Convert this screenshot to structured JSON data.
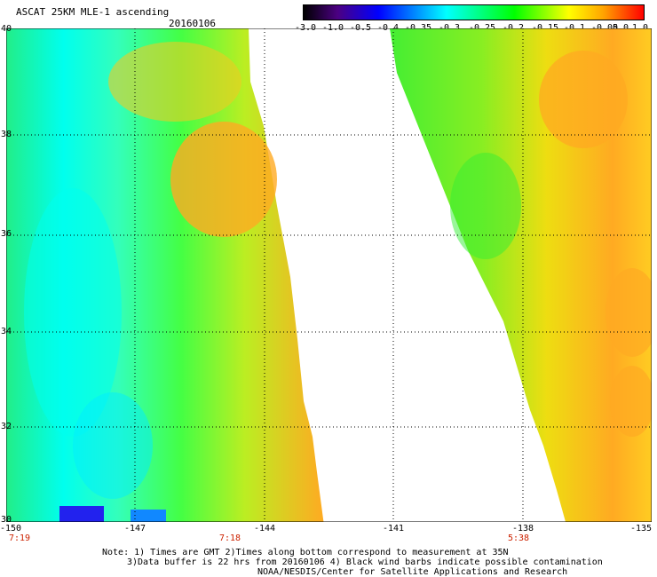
{
  "header": {
    "title": "ASCAT 25KM MLE-1 ascending",
    "date": "20160106"
  },
  "colorbar": {
    "ticks": [
      "-3.0",
      "-1.0",
      "-0.5",
      "-0.4",
      "-0.35",
      "-0.3",
      "-0.25",
      "-0.2",
      "-0.15",
      "-0.1",
      "-0.05",
      "0.0",
      "1.0"
    ]
  },
  "axes": {
    "y_labels": [
      "40",
      "38",
      "36",
      "34",
      "32",
      "30"
    ],
    "x_labels": [
      "-150",
      "-147",
      "-144",
      "-141",
      "-138",
      "-135"
    ],
    "time_labels": [
      "7:19",
      "7:18",
      "5:38"
    ]
  },
  "notes": {
    "line1": "Note: 1) Times are GMT 2)Times along bottom correspond to measurement at 35N",
    "line2": "3)Data buffer is 22 hrs from 20160106 4) Black wind barbs indicate possible contamination",
    "line3": "NOAA/NESDIS/Center for Satellite Applications and Research"
  },
  "map": {
    "lat_range": [
      30,
      40
    ],
    "lon_range": [
      -150,
      -135
    ]
  }
}
